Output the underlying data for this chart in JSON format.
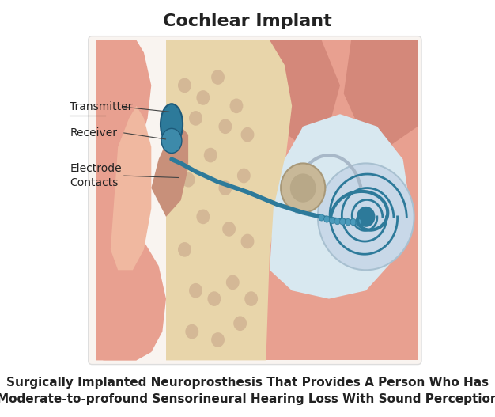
{
  "title": "Cochlear Implant",
  "title_fontsize": 16,
  "title_fontweight": "bold",
  "subtitle_line1": "Surgically Implanted Neuroprosthesis That Provides A Person Who Has",
  "subtitle_line2": "Moderate-to-profound Sensorineural Hearing Loss With Sound Perception",
  "subtitle_fontsize": 11,
  "subtitle_fontweight": "bold",
  "background_color": "#ffffff",
  "label_fontsize": 10,
  "arrow_color": "#444444",
  "label_color": "#222222",
  "skin_color": "#e8a090",
  "skin_dark": "#d4887a",
  "skin_light": "#f0b8a0",
  "bone_color": "#e8d5aa",
  "bone_spot_color": "#d4b896",
  "canal_color": "#c8907a",
  "inner_ear_color": "#d8e8f0",
  "cochlea_bg_color": "#c8d8e8",
  "cochlea_edge_color": "#a8c0d0",
  "implant_color": "#2d7a9a",
  "implant_dark": "#1d5a7a",
  "implant_light": "#3d8aaa",
  "ossicle_color": "#c8b898",
  "ossicle_edge": "#a89878",
  "frame_color": "#f9f4f0",
  "frame_edge": "#dddddd"
}
